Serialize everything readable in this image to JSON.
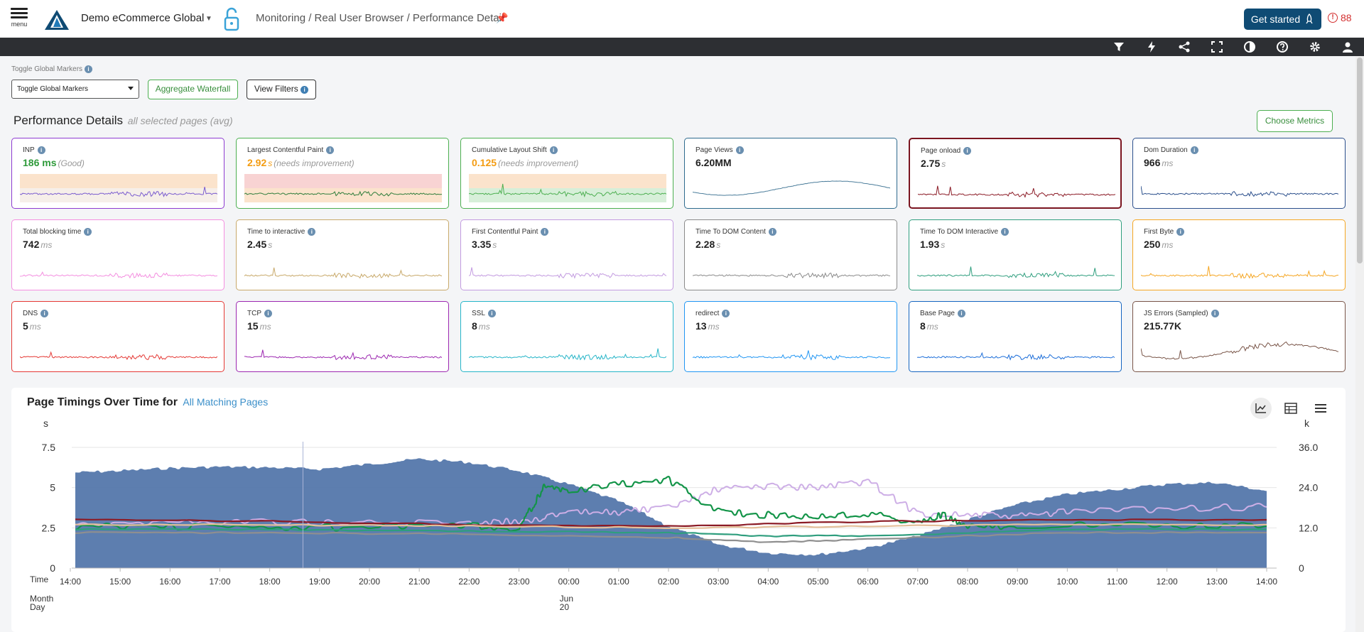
{
  "header": {
    "menu_label": "menu",
    "org_name": "Demo eCommerce Global",
    "breadcrumb": "Monitoring / Real User Browser / Performance Detail",
    "get_started": "Get started",
    "alert_count": "88"
  },
  "toolbar": {
    "icons": [
      "filter-icon",
      "lightning-icon",
      "share-icon",
      "fullscreen-icon",
      "contrast-icon",
      "help-icon",
      "settings-icon",
      "user-icon"
    ]
  },
  "controls": {
    "markers_label": "Toggle Global Markers",
    "markers_select": "Toggle Global Markers",
    "aggregate_waterfall": "Aggregate Waterfall",
    "view_filters": "View Filters"
  },
  "performance": {
    "title": "Performance Details",
    "subtitle": "all selected pages (avg)",
    "choose_metrics": "Choose Metrics"
  },
  "metrics": [
    {
      "label": "INP",
      "value": "186 ms",
      "unit": "",
      "note": "(Good)",
      "border": "#8e3bd1",
      "line": "#7a5ccf",
      "value_color": "#2e9a3a",
      "band": "good"
    },
    {
      "label": "Largest Contentful Paint",
      "value": "2.92",
      "unit": "s",
      "note": "(needs improvement)",
      "border": "#4caf50",
      "line": "#2e7d3a",
      "value_color": "#f39c12",
      "band": "bad"
    },
    {
      "label": "Cumulative Layout Shift",
      "value": "0.125",
      "unit": "",
      "note": "(needs improvement)",
      "border": "#4caf50",
      "line": "#4caf50",
      "value_color": "#f39c12",
      "band": "good"
    },
    {
      "label": "Page Views",
      "value": "6.20MM",
      "unit": "",
      "note": "",
      "border": "#2f6b8e",
      "line": "#4a7c9a",
      "value_color": "#222",
      "band": "none"
    },
    {
      "label": "Page onload",
      "value": "2.75",
      "unit": "s",
      "note": "",
      "border": "#7b1520",
      "line": "#8b1a25",
      "value_color": "#222",
      "band": "none"
    },
    {
      "label": "Dom Duration",
      "value": "966",
      "unit": "ms",
      "note": "",
      "border": "#2b4f8c",
      "line": "#2b4f8c",
      "value_color": "#222",
      "band": "none"
    },
    {
      "label": "Total blocking time",
      "value": "742",
      "unit": "ms",
      "note": "",
      "border": "#f48fe0",
      "line": "#f48fe0",
      "value_color": "#222",
      "band": "none"
    },
    {
      "label": "Time to interactive",
      "value": "2.45",
      "unit": "s",
      "note": "",
      "border": "#c8a96a",
      "line": "#c8a96a",
      "value_color": "#222",
      "band": "none"
    },
    {
      "label": "First Contentful Paint",
      "value": "3.35",
      "unit": "s",
      "note": "",
      "border": "#c39be0",
      "line": "#c39be0",
      "value_color": "#222",
      "band": "none"
    },
    {
      "label": "Time To DOM Content",
      "value": "2.28",
      "unit": "s",
      "note": "",
      "border": "#8a8a8a",
      "line": "#8a8a8a",
      "value_color": "#222",
      "band": "none"
    },
    {
      "label": "Time To DOM Interactive",
      "value": "1.93",
      "unit": "s",
      "note": "",
      "border": "#2f9e7e",
      "line": "#2f9e7e",
      "value_color": "#222",
      "band": "none"
    },
    {
      "label": "First Byte",
      "value": "250",
      "unit": "ms",
      "note": "",
      "border": "#f5a623",
      "line": "#f5a623",
      "value_color": "#222",
      "band": "none"
    },
    {
      "label": "DNS",
      "value": "5",
      "unit": "ms",
      "note": "",
      "border": "#e53935",
      "line": "#e53935",
      "value_color": "#222",
      "band": "none"
    },
    {
      "label": "TCP",
      "value": "15",
      "unit": "ms",
      "note": "",
      "border": "#9c27b0",
      "line": "#9c27b0",
      "value_color": "#222",
      "band": "none"
    },
    {
      "label": "SSL",
      "value": "8",
      "unit": "ms",
      "note": "",
      "border": "#26b5c8",
      "line": "#26b5c8",
      "value_color": "#222",
      "band": "none"
    },
    {
      "label": "redirect",
      "value": "13",
      "unit": "ms",
      "note": "",
      "border": "#2196f3",
      "line": "#2196f3",
      "value_color": "#222",
      "band": "none"
    },
    {
      "label": "Base Page",
      "value": "8",
      "unit": "ms",
      "note": "",
      "border": "#1565c0",
      "line": "#1e6fd9",
      "value_color": "#222",
      "band": "none"
    },
    {
      "label": "JS Errors (Sampled)",
      "value": "215.77K",
      "unit": "",
      "note": "",
      "border": "#795548",
      "line": "#795548",
      "value_color": "#222",
      "band": "none"
    }
  ],
  "chart": {
    "title": "Page Timings Over Time for",
    "link": "All Matching Pages",
    "tools": [
      "line-chart-icon",
      "table-icon",
      "hamburger-menu-icon"
    ]
  },
  "chart_data": {
    "type": "area",
    "y_left_label": "s",
    "y_right_label": "k",
    "y_left_ticks": [
      "0",
      "2.5",
      "5",
      "7.5"
    ],
    "y_right_ticks": [
      "0",
      "12.0",
      "24.0",
      "36.0"
    ],
    "ylim_left": [
      0,
      7.5
    ],
    "ylim_right": [
      0,
      36
    ],
    "x_label_rows": [
      "Time",
      "Month",
      "Day"
    ],
    "x_ticks": [
      "14:00",
      "15:00",
      "16:00",
      "17:00",
      "18:00",
      "19:00",
      "20:00",
      "21:00",
      "22:00",
      "23:00",
      "00:00",
      "01:00",
      "02:00",
      "03:00",
      "04:00",
      "05:00",
      "06:00",
      "07:00",
      "08:00",
      "09:00",
      "10:00",
      "11:00",
      "12:00",
      "13:00",
      "14:00"
    ],
    "date_label": "Jun",
    "date_day": "20",
    "grid": true,
    "series": [
      {
        "axis": "right",
        "color": "#4f73a8",
        "fill": true,
        "x": [
          "14:00",
          "15:00",
          "16:00",
          "17:00",
          "18:00",
          "19:00",
          "20:00",
          "21:00",
          "22:00",
          "23:00",
          "00:00",
          "01:00",
          "02:00",
          "03:00",
          "04:00",
          "05:00",
          "06:00",
          "07:00",
          "08:00",
          "09:00",
          "10:00",
          "11:00",
          "12:00",
          "13:00",
          "14:00"
        ],
        "values": [
          28.5,
          29.0,
          29.8,
          30.2,
          30.0,
          29.5,
          31.0,
          32.5,
          31.5,
          29.0,
          25.0,
          20.0,
          12.5,
          7.0,
          4.5,
          4.0,
          6.0,
          9.5,
          14.5,
          19.0,
          22.0,
          23.5,
          25.0,
          25.5,
          23.0
        ]
      },
      {
        "axis": "left",
        "color": "#cdaee6",
        "x": [
          "14:00",
          "16:00",
          "18:00",
          "20:00",
          "22:00",
          "23:00",
          "00:00",
          "01:00",
          "02:00",
          "03:00",
          "04:00",
          "05:00",
          "06:00",
          "07:00",
          "08:00",
          "09:00",
          "10:00",
          "12:00",
          "14:00"
        ],
        "values": [
          2.8,
          2.85,
          2.9,
          2.8,
          2.85,
          2.9,
          3.4,
          3.5,
          3.7,
          4.9,
          5.1,
          5.0,
          5.4,
          3.4,
          3.3,
          3.2,
          3.5,
          3.7,
          3.8
        ]
      },
      {
        "axis": "left",
        "color": "#139448",
        "x": [
          "14:00",
          "16:00",
          "18:00",
          "20:00",
          "22:00",
          "23:00",
          "23:30",
          "00:00",
          "01:00",
          "02:00",
          "03:00",
          "04:00",
          "05:00",
          "06:00",
          "07:00",
          "07:30",
          "08:00",
          "09:00",
          "12:00",
          "14:00"
        ],
        "values": [
          2.6,
          2.6,
          2.5,
          2.55,
          2.6,
          2.5,
          5.0,
          4.8,
          5.2,
          5.5,
          3.5,
          3.3,
          3.2,
          3.4,
          2.8,
          3.3,
          2.5,
          2.7,
          2.6,
          2.6
        ]
      },
      {
        "axis": "left",
        "color": "#8b1a25",
        "x": [
          "14:00",
          "18:00",
          "22:00",
          "02:00",
          "06:00",
          "10:00",
          "14:00"
        ],
        "values": [
          3.0,
          2.9,
          2.7,
          2.6,
          2.9,
          3.0,
          3.0
        ]
      },
      {
        "axis": "left",
        "color": "#e4bf9a",
        "x": [
          "14:00",
          "18:00",
          "22:00",
          "02:00",
          "06:00",
          "10:00",
          "14:00"
        ],
        "values": [
          2.7,
          2.7,
          2.6,
          2.5,
          2.6,
          2.7,
          2.7
        ]
      },
      {
        "axis": "left",
        "color": "#2f9e7e",
        "x": [
          "14:00",
          "18:00",
          "22:00",
          "02:00",
          "04:00",
          "06:00",
          "10:00",
          "14:00"
        ],
        "values": [
          2.4,
          2.4,
          2.3,
          2.2,
          2.0,
          2.0,
          2.4,
          2.4
        ]
      },
      {
        "axis": "left",
        "color": "#8f8f8f",
        "x": [
          "14:00",
          "18:00",
          "22:00",
          "02:00",
          "04:00",
          "06:00",
          "10:00",
          "14:00"
        ],
        "values": [
          2.2,
          2.2,
          2.1,
          1.9,
          1.6,
          1.8,
          2.2,
          2.2
        ]
      }
    ]
  }
}
